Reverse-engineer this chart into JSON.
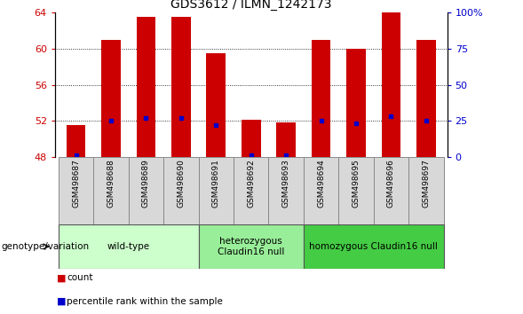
{
  "title": "GDS3612 / ILMN_1242173",
  "samples": [
    "GSM498687",
    "GSM498688",
    "GSM498689",
    "GSM498690",
    "GSM498691",
    "GSM498692",
    "GSM498693",
    "GSM498694",
    "GSM498695",
    "GSM498696",
    "GSM498697"
  ],
  "bar_heights": [
    51.5,
    61.0,
    63.5,
    63.5,
    59.5,
    52.1,
    51.8,
    61.0,
    60.0,
    64.0,
    61.0
  ],
  "bar_base": 48,
  "blue_dot_y": [
    48.2,
    52.0,
    52.3,
    52.3,
    51.5,
    48.2,
    48.2,
    52.0,
    51.7,
    52.5,
    52.0
  ],
  "ylim": [
    48,
    64
  ],
  "yticks_left": [
    48,
    52,
    56,
    60,
    64
  ],
  "yticks_right": [
    0,
    25,
    50,
    75,
    100
  ],
  "ytick_labels_right": [
    "0",
    "25",
    "50",
    "75",
    "100%"
  ],
  "bar_color": "#cc0000",
  "blue_dot_color": "#0000cc",
  "grid_color": "#000000",
  "left_tick_color": "#cc0000",
  "right_tick_color": "#0000cc",
  "groups": [
    {
      "label": "wild-type",
      "start": 0,
      "end": 3,
      "color": "#ccffcc"
    },
    {
      "label": "heterozygous\nClaudin16 null",
      "start": 4,
      "end": 6,
      "color": "#99ee99"
    },
    {
      "label": "homozygous Claudin16 null",
      "start": 7,
      "end": 10,
      "color": "#44cc44"
    }
  ],
  "genotype_label": "genotype/variation",
  "legend_count_label": "count",
  "legend_percentile_label": "percentile rank within the sample",
  "bar_width": 0.55,
  "fig_width": 5.89,
  "fig_height": 3.54,
  "dpi": 100
}
